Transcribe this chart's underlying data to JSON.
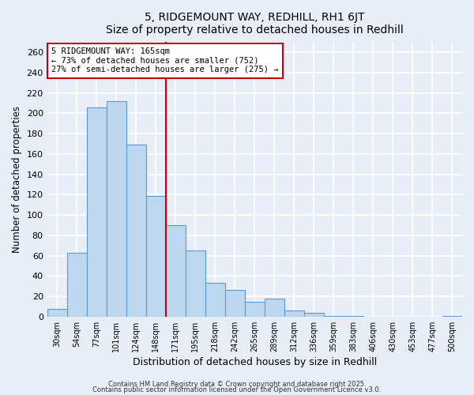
{
  "title": "5, RIDGEMOUNT WAY, REDHILL, RH1 6JT",
  "subtitle": "Size of property relative to detached houses in Redhill",
  "xlabel": "Distribution of detached houses by size in Redhill",
  "ylabel": "Number of detached properties",
  "bar_labels": [
    "30sqm",
    "54sqm",
    "77sqm",
    "101sqm",
    "124sqm",
    "148sqm",
    "171sqm",
    "195sqm",
    "218sqm",
    "242sqm",
    "265sqm",
    "289sqm",
    "312sqm",
    "336sqm",
    "359sqm",
    "383sqm",
    "406sqm",
    "430sqm",
    "453sqm",
    "477sqm",
    "500sqm"
  ],
  "bar_values": [
    8,
    63,
    206,
    212,
    169,
    119,
    90,
    65,
    33,
    26,
    15,
    18,
    6,
    4,
    1,
    1,
    0,
    0,
    0,
    0,
    1
  ],
  "bar_color": "#bdd7ee",
  "bar_edge_color": "#5b9bd5",
  "ylim": [
    0,
    270
  ],
  "yticks": [
    0,
    20,
    40,
    60,
    80,
    100,
    120,
    140,
    160,
    180,
    200,
    220,
    240,
    260
  ],
  "vline_x": 5.5,
  "vline_color": "#cc0000",
  "annotation_title": "5 RIDGEMOUNT WAY: 165sqm",
  "annotation_line1": "← 73% of detached houses are smaller (752)",
  "annotation_line2": "27% of semi-detached houses are larger (275) →",
  "annotation_box_color": "#ffffff",
  "annotation_box_edge": "#cc0000",
  "footnote1": "Contains HM Land Registry data © Crown copyright and database right 2025.",
  "footnote2": "Contains public sector information licensed under the Open Government Licence v3.0.",
  "bg_color": "#e8eef8",
  "plot_bg_color": "#e8eef8"
}
